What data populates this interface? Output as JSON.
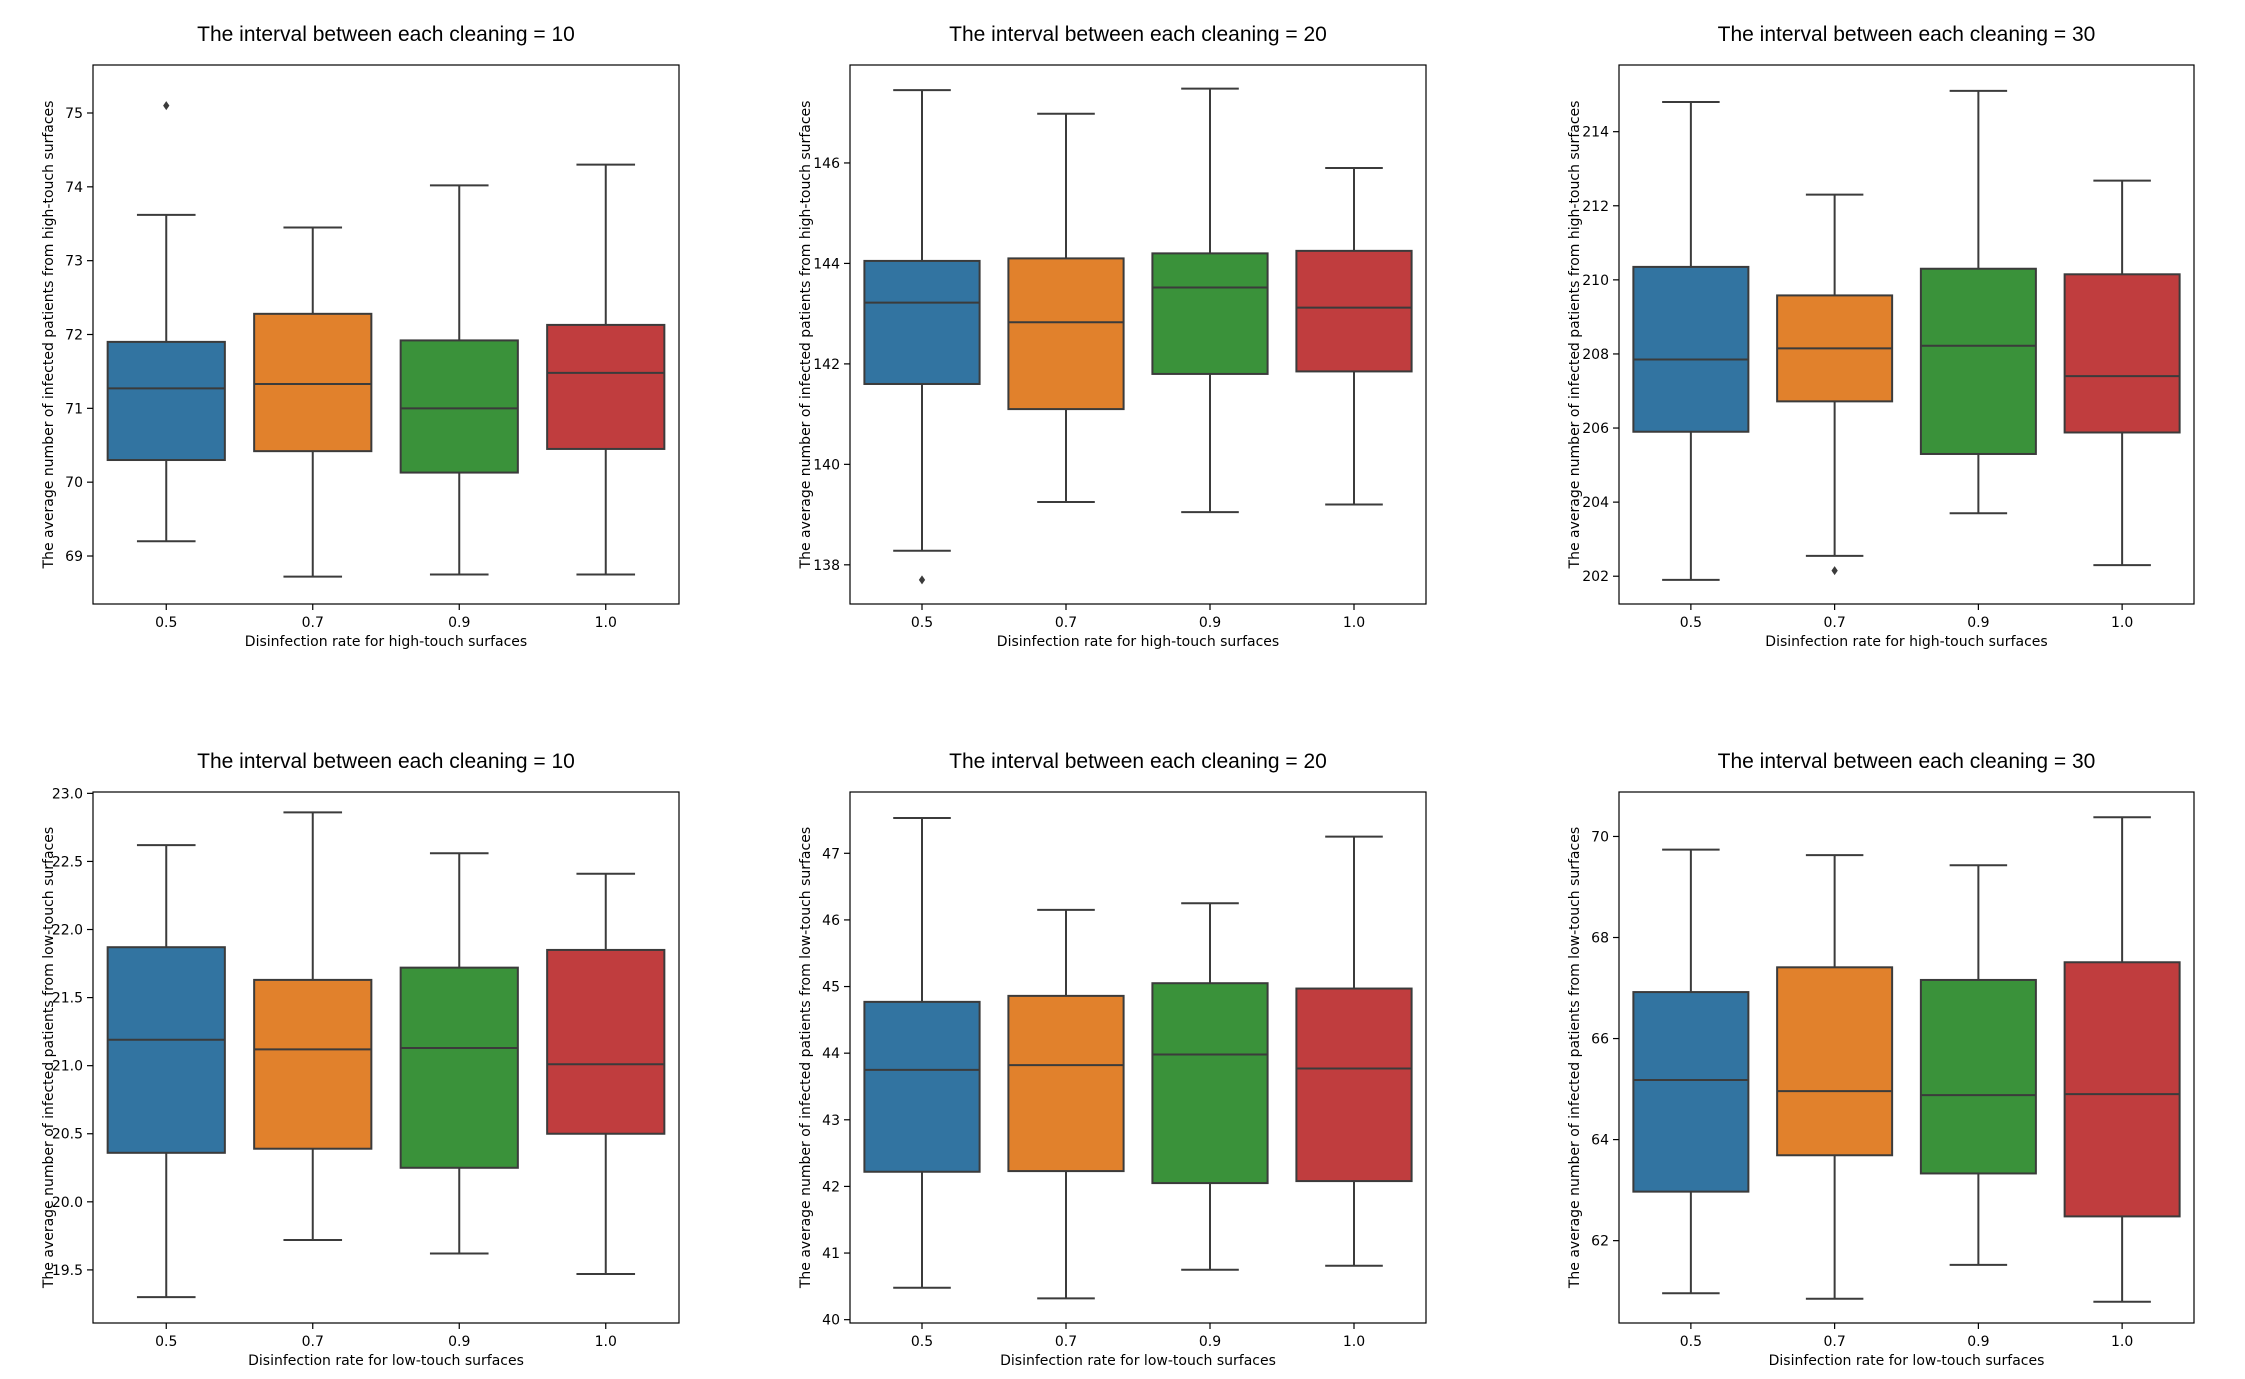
{
  "figure": {
    "layout": "2 rows x 3 columns of box plots"
  },
  "palette": {
    "0.5": "#3274a1",
    "0.7": "#e1812c",
    "0.9": "#3a923a",
    "1.0": "#c03d3e",
    "line": "#3b3b3b"
  },
  "chart_data": [
    {
      "type": "box",
      "title": "The interval between each cleaning = 10",
      "xlabel": "Disinfection rate for high-touch surfaces",
      "ylabel": "The average number of infected patients from high-touch surfaces",
      "categories": [
        "0.5",
        "0.7",
        "0.9",
        "1.0"
      ],
      "ylim": [
        68.35,
        75.65
      ],
      "yticks": [
        69,
        70,
        71,
        72,
        73,
        74,
        75
      ],
      "ytick_labels": [
        "69",
        "70",
        "71",
        "72",
        "73",
        "74",
        "75"
      ],
      "boxes": [
        {
          "whisker_low": 69.2,
          "q1": 70.3,
          "median": 71.27,
          "q3": 71.9,
          "whisker_high": 73.62,
          "outliers": [
            75.1
          ]
        },
        {
          "whisker_low": 68.72,
          "q1": 70.42,
          "median": 71.33,
          "q3": 72.28,
          "whisker_high": 73.45,
          "outliers": []
        },
        {
          "whisker_low": 68.75,
          "q1": 70.13,
          "median": 71.0,
          "q3": 71.92,
          "whisker_high": 74.02,
          "outliers": []
        },
        {
          "whisker_low": 68.75,
          "q1": 70.45,
          "median": 71.48,
          "q3": 72.13,
          "whisker_high": 74.3,
          "outliers": []
        }
      ]
    },
    {
      "type": "box",
      "title": "The interval between each cleaning = 20",
      "xlabel": "Disinfection rate for high-touch surfaces",
      "ylabel": "The average number of infected patients from high-touch surfaces",
      "categories": [
        "0.5",
        "0.7",
        "0.9",
        "1.0"
      ],
      "ylim": [
        137.22,
        147.95
      ],
      "yticks": [
        138,
        140,
        142,
        144,
        146
      ],
      "ytick_labels": [
        "138",
        "140",
        "142",
        "144",
        "146"
      ],
      "boxes": [
        {
          "whisker_low": 138.28,
          "q1": 141.6,
          "median": 143.22,
          "q3": 144.05,
          "whisker_high": 147.45,
          "outliers": [
            137.7
          ]
        },
        {
          "whisker_low": 139.25,
          "q1": 141.1,
          "median": 142.83,
          "q3": 144.1,
          "whisker_high": 146.98,
          "outliers": []
        },
        {
          "whisker_low": 139.05,
          "q1": 141.8,
          "median": 143.52,
          "q3": 144.2,
          "whisker_high": 147.48,
          "outliers": []
        },
        {
          "whisker_low": 139.2,
          "q1": 141.85,
          "median": 143.12,
          "q3": 144.25,
          "whisker_high": 145.9,
          "outliers": []
        }
      ]
    },
    {
      "type": "box",
      "title": "The interval between each cleaning = 30",
      "xlabel": "Disinfection rate for high-touch surfaces",
      "ylabel": "The average number of infected patients from high-touch surfaces",
      "categories": [
        "0.5",
        "0.7",
        "0.9",
        "1.0"
      ],
      "ylim": [
        201.25,
        215.8
      ],
      "yticks": [
        202,
        204,
        206,
        208,
        210,
        212,
        214
      ],
      "ytick_labels": [
        "202",
        "204",
        "206",
        "208",
        "210",
        "212",
        "214"
      ],
      "boxes": [
        {
          "whisker_low": 201.9,
          "q1": 205.9,
          "median": 207.85,
          "q3": 210.35,
          "whisker_high": 214.8,
          "outliers": []
        },
        {
          "whisker_low": 202.55,
          "q1": 206.72,
          "median": 208.15,
          "q3": 209.58,
          "whisker_high": 212.3,
          "outliers": [
            202.15
          ]
        },
        {
          "whisker_low": 203.7,
          "q1": 205.3,
          "median": 208.22,
          "q3": 210.3,
          "whisker_high": 215.1,
          "outliers": []
        },
        {
          "whisker_low": 202.3,
          "q1": 205.88,
          "median": 207.4,
          "q3": 210.15,
          "whisker_high": 212.68,
          "outliers": []
        }
      ]
    },
    {
      "type": "box",
      "title": "The interval between each cleaning = 10",
      "xlabel": "Disinfection rate for low-touch surfaces",
      "ylabel": "The average number of infected patients from low-touch surfaces",
      "categories": [
        "0.5",
        "0.7",
        "0.9",
        "1.0"
      ],
      "ylim": [
        19.11,
        23.01
      ],
      "yticks": [
        19.5,
        20.0,
        20.5,
        21.0,
        21.5,
        22.0,
        22.5,
        23.0
      ],
      "ytick_labels": [
        "19.5",
        "20.0",
        "20.5",
        "21.0",
        "21.5",
        "22.0",
        "22.5",
        "23.0"
      ],
      "boxes": [
        {
          "whisker_low": 19.3,
          "q1": 20.36,
          "median": 21.19,
          "q3": 21.87,
          "whisker_high": 22.62,
          "outliers": []
        },
        {
          "whisker_low": 19.72,
          "q1": 20.39,
          "median": 21.12,
          "q3": 21.63,
          "whisker_high": 22.86,
          "outliers": []
        },
        {
          "whisker_low": 19.62,
          "q1": 20.25,
          "median": 21.13,
          "q3": 21.72,
          "whisker_high": 22.56,
          "outliers": []
        },
        {
          "whisker_low": 19.47,
          "q1": 20.5,
          "median": 21.01,
          "q3": 21.85,
          "whisker_high": 22.41,
          "outliers": []
        }
      ]
    },
    {
      "type": "box",
      "title": "The interval between each cleaning = 20",
      "xlabel": "Disinfection rate for low-touch surfaces",
      "ylabel": "The average number of infected patients from low-touch surfaces",
      "categories": [
        "0.5",
        "0.7",
        "0.9",
        "1.0"
      ],
      "ylim": [
        39.95,
        47.92
      ],
      "yticks": [
        40,
        41,
        42,
        43,
        44,
        45,
        46,
        47
      ],
      "ytick_labels": [
        "40",
        "41",
        "42",
        "43",
        "44",
        "45",
        "46",
        "47"
      ],
      "boxes": [
        {
          "whisker_low": 40.48,
          "q1": 42.22,
          "median": 43.75,
          "q3": 44.77,
          "whisker_high": 47.53,
          "outliers": []
        },
        {
          "whisker_low": 40.32,
          "q1": 42.23,
          "median": 43.82,
          "q3": 44.86,
          "whisker_high": 46.15,
          "outliers": []
        },
        {
          "whisker_low": 40.75,
          "q1": 42.05,
          "median": 43.98,
          "q3": 45.05,
          "whisker_high": 46.25,
          "outliers": []
        },
        {
          "whisker_low": 40.81,
          "q1": 42.08,
          "median": 43.77,
          "q3": 44.97,
          "whisker_high": 47.25,
          "outliers": []
        }
      ]
    },
    {
      "type": "box",
      "title": "The interval between each cleaning = 30",
      "xlabel": "Disinfection rate for low-touch surfaces",
      "ylabel": "The average number of infected patients from low-touch surfaces",
      "categories": [
        "0.5",
        "0.7",
        "0.9",
        "1.0"
      ],
      "ylim": [
        60.37,
        70.88
      ],
      "yticks": [
        62,
        64,
        66,
        68,
        70
      ],
      "ytick_labels": [
        "62",
        "64",
        "66",
        "68",
        "70"
      ],
      "boxes": [
        {
          "whisker_low": 60.96,
          "q1": 62.97,
          "median": 65.18,
          "q3": 66.92,
          "whisker_high": 69.74,
          "outliers": []
        },
        {
          "whisker_low": 60.85,
          "q1": 63.69,
          "median": 64.96,
          "q3": 67.41,
          "whisker_high": 69.63,
          "outliers": []
        },
        {
          "whisker_low": 61.52,
          "q1": 63.33,
          "median": 64.88,
          "q3": 67.16,
          "whisker_high": 69.43,
          "outliers": []
        },
        {
          "whisker_low": 60.79,
          "q1": 62.48,
          "median": 64.9,
          "q3": 67.51,
          "whisker_high": 70.38,
          "outliers": []
        }
      ]
    }
  ]
}
